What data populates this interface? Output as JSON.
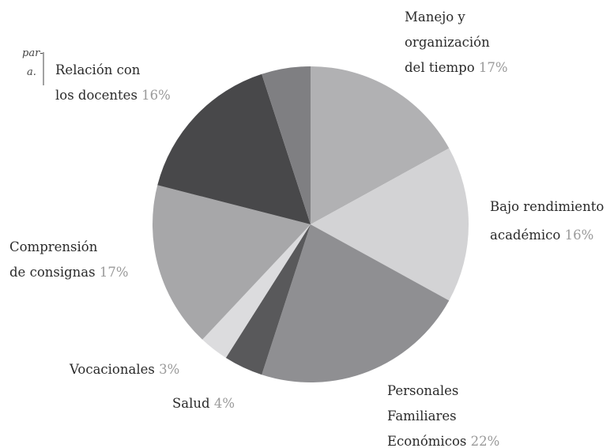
{
  "chart_data": {
    "type": "pie",
    "fragments": [
      "par-",
      "a."
    ],
    "categories": [
      "Manejo y\norganización\ndel tiempo",
      "Bajo rendimiento\nacadémico",
      "Personales\nFamiliares\nEconómicos",
      "Salud",
      "Vocacionales",
      "Comprensión\nde consignas",
      "Relación con\nlos docentes",
      null
    ],
    "values": [
      17,
      16,
      22,
      4,
      3,
      17,
      16,
      5
    ],
    "value_labels": [
      "17%",
      "16%",
      "22%",
      "4%",
      "3%",
      "17%",
      "16%",
      null
    ],
    "colors": [
      "#b1b1b3",
      "#d3d3d5",
      "#8f8f92",
      "#59595b",
      "#dcdcde",
      "#a7a7a9",
      "#48484a",
      "#7f7f82"
    ]
  }
}
